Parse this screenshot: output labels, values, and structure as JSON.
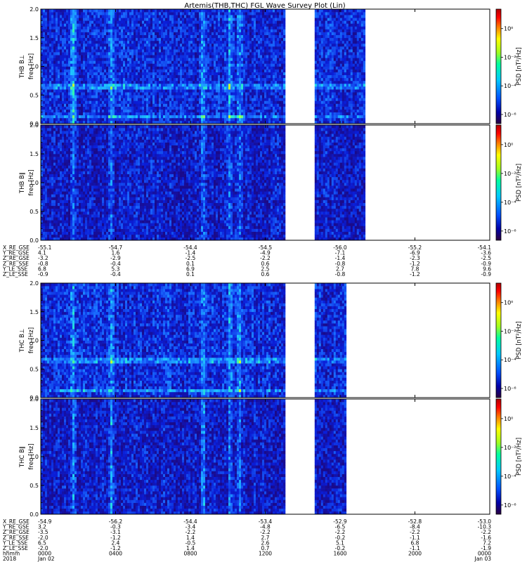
{
  "chart_data": {
    "type": "heatmap",
    "title": "Artemis(THB,THC) FGL Wave Survey Plot (Lin)",
    "colorbar": {
      "label": "PSD [nT²/Hz]",
      "tick_labels": [
        "10⁰",
        "10⁻²",
        "10⁻⁴",
        "10⁻⁶"
      ],
      "colors": [
        "#2b0040",
        "#0000a8",
        "#0050ff",
        "#00c8ff",
        "#00ffa0",
        "#a0ff20",
        "#ffff00",
        "#ff8000",
        "#ff0000",
        "#b00000"
      ]
    },
    "y_axis": {
      "label": "freq [Hz]",
      "ylim": [
        0.0,
        2.0
      ],
      "tick_labels": [
        "0.0",
        "0.5",
        "1.0",
        "1.5",
        "2.0"
      ]
    },
    "panels": [
      {
        "name": "THB B⊥",
        "probe": "THB",
        "data_segments": [
          [
            0.0,
            0.54
          ],
          [
            0.61,
            0.72
          ]
        ]
      },
      {
        "name": "THB B∥",
        "probe": "THB",
        "data_segments": [
          [
            0.0,
            0.54
          ],
          [
            0.61,
            0.72
          ]
        ]
      },
      {
        "name": "THC B⊥",
        "probe": "THC",
        "data_segments": [
          [
            0.0,
            0.54
          ],
          [
            0.61,
            0.68
          ]
        ]
      },
      {
        "name": "THC B∥",
        "probe": "THC",
        "data_segments": [
          [
            0.0,
            0.54
          ],
          [
            0.61,
            0.68
          ]
        ]
      }
    ],
    "ephemeris_thb": [
      {
        "label": "X_RE_GSE",
        "values": [
          "-55.1",
          "-54.7",
          "-54.4",
          "-54.5",
          "-56.0",
          "-55.2",
          "-54.1"
        ]
      },
      {
        "label": "Y_RE_GSE",
        "values": [
          "4.1",
          "1.6",
          "-1.4",
          "-4.9",
          "-7.1",
          "-6.9",
          "-3.6"
        ]
      },
      {
        "label": "Z_RE_GSE",
        "values": [
          "-3.2",
          "-2.9",
          "-2.5",
          "-2.2",
          "-1.4",
          "-2.3",
          "-2.5"
        ]
      },
      {
        "label": "Z_RE_SSE",
        "values": [
          "-0.8",
          "-0.4",
          "0.1",
          "0.6",
          "-0.8",
          "-1.2",
          "-0.9"
        ]
      },
      {
        "label": "Y_LE_SSE",
        "values": [
          "6.8",
          "5.3",
          "6.9",
          "2.5",
          "2.7",
          "7.8",
          "9.6"
        ]
      },
      {
        "label": "Z_LE_SSE",
        "values": [
          "-0.9",
          "-0.4",
          "0.1",
          "0.6",
          "-0.8",
          "-1.2",
          "-0.9"
        ]
      }
    ],
    "ephemeris_thc": [
      {
        "label": "X_RE_GSE",
        "values": [
          "-54.9",
          "-56.2",
          "-54.4",
          "-53.4",
          "-52.9",
          "-52.8",
          "-53.0"
        ]
      },
      {
        "label": "Y_RE_GSE",
        "values": [
          "3.2",
          "-0.3",
          "-3.4",
          "-4.8",
          "-6.5",
          "-8.4",
          "-10.3"
        ]
      },
      {
        "label": "Z_RE_GSE",
        "values": [
          "-3.5",
          "-3.1",
          "-2.2",
          "-2.2",
          "-2.2",
          "-2.2",
          "-2.2"
        ]
      },
      {
        "label": "Z_RE_SSE",
        "values": [
          "-2.0",
          "-1.2",
          "1.4",
          "2.7",
          "-0.2",
          "-1.1",
          "-1.6"
        ]
      },
      {
        "label": "Y_LE_SSE",
        "values": [
          "6.5",
          "2.4",
          "-0.5",
          "2.6",
          "5.1",
          "6.8",
          "7.2"
        ]
      },
      {
        "label": "Z_LE_SSE",
        "values": [
          "-2.0",
          "-1.2",
          "1.4",
          "0.7",
          "-0.2",
          "-1.1",
          "-1.9"
        ]
      }
    ],
    "time_axis": {
      "hhmm_label": "hhmm",
      "date_label": "2018",
      "hhmm": [
        "0000",
        "0400",
        "0800",
        "1200",
        "1600",
        "2000",
        "0000"
      ],
      "dates": [
        "Jan 02",
        "",
        "",
        "",
        "",
        "",
        "Jan 03"
      ]
    }
  }
}
